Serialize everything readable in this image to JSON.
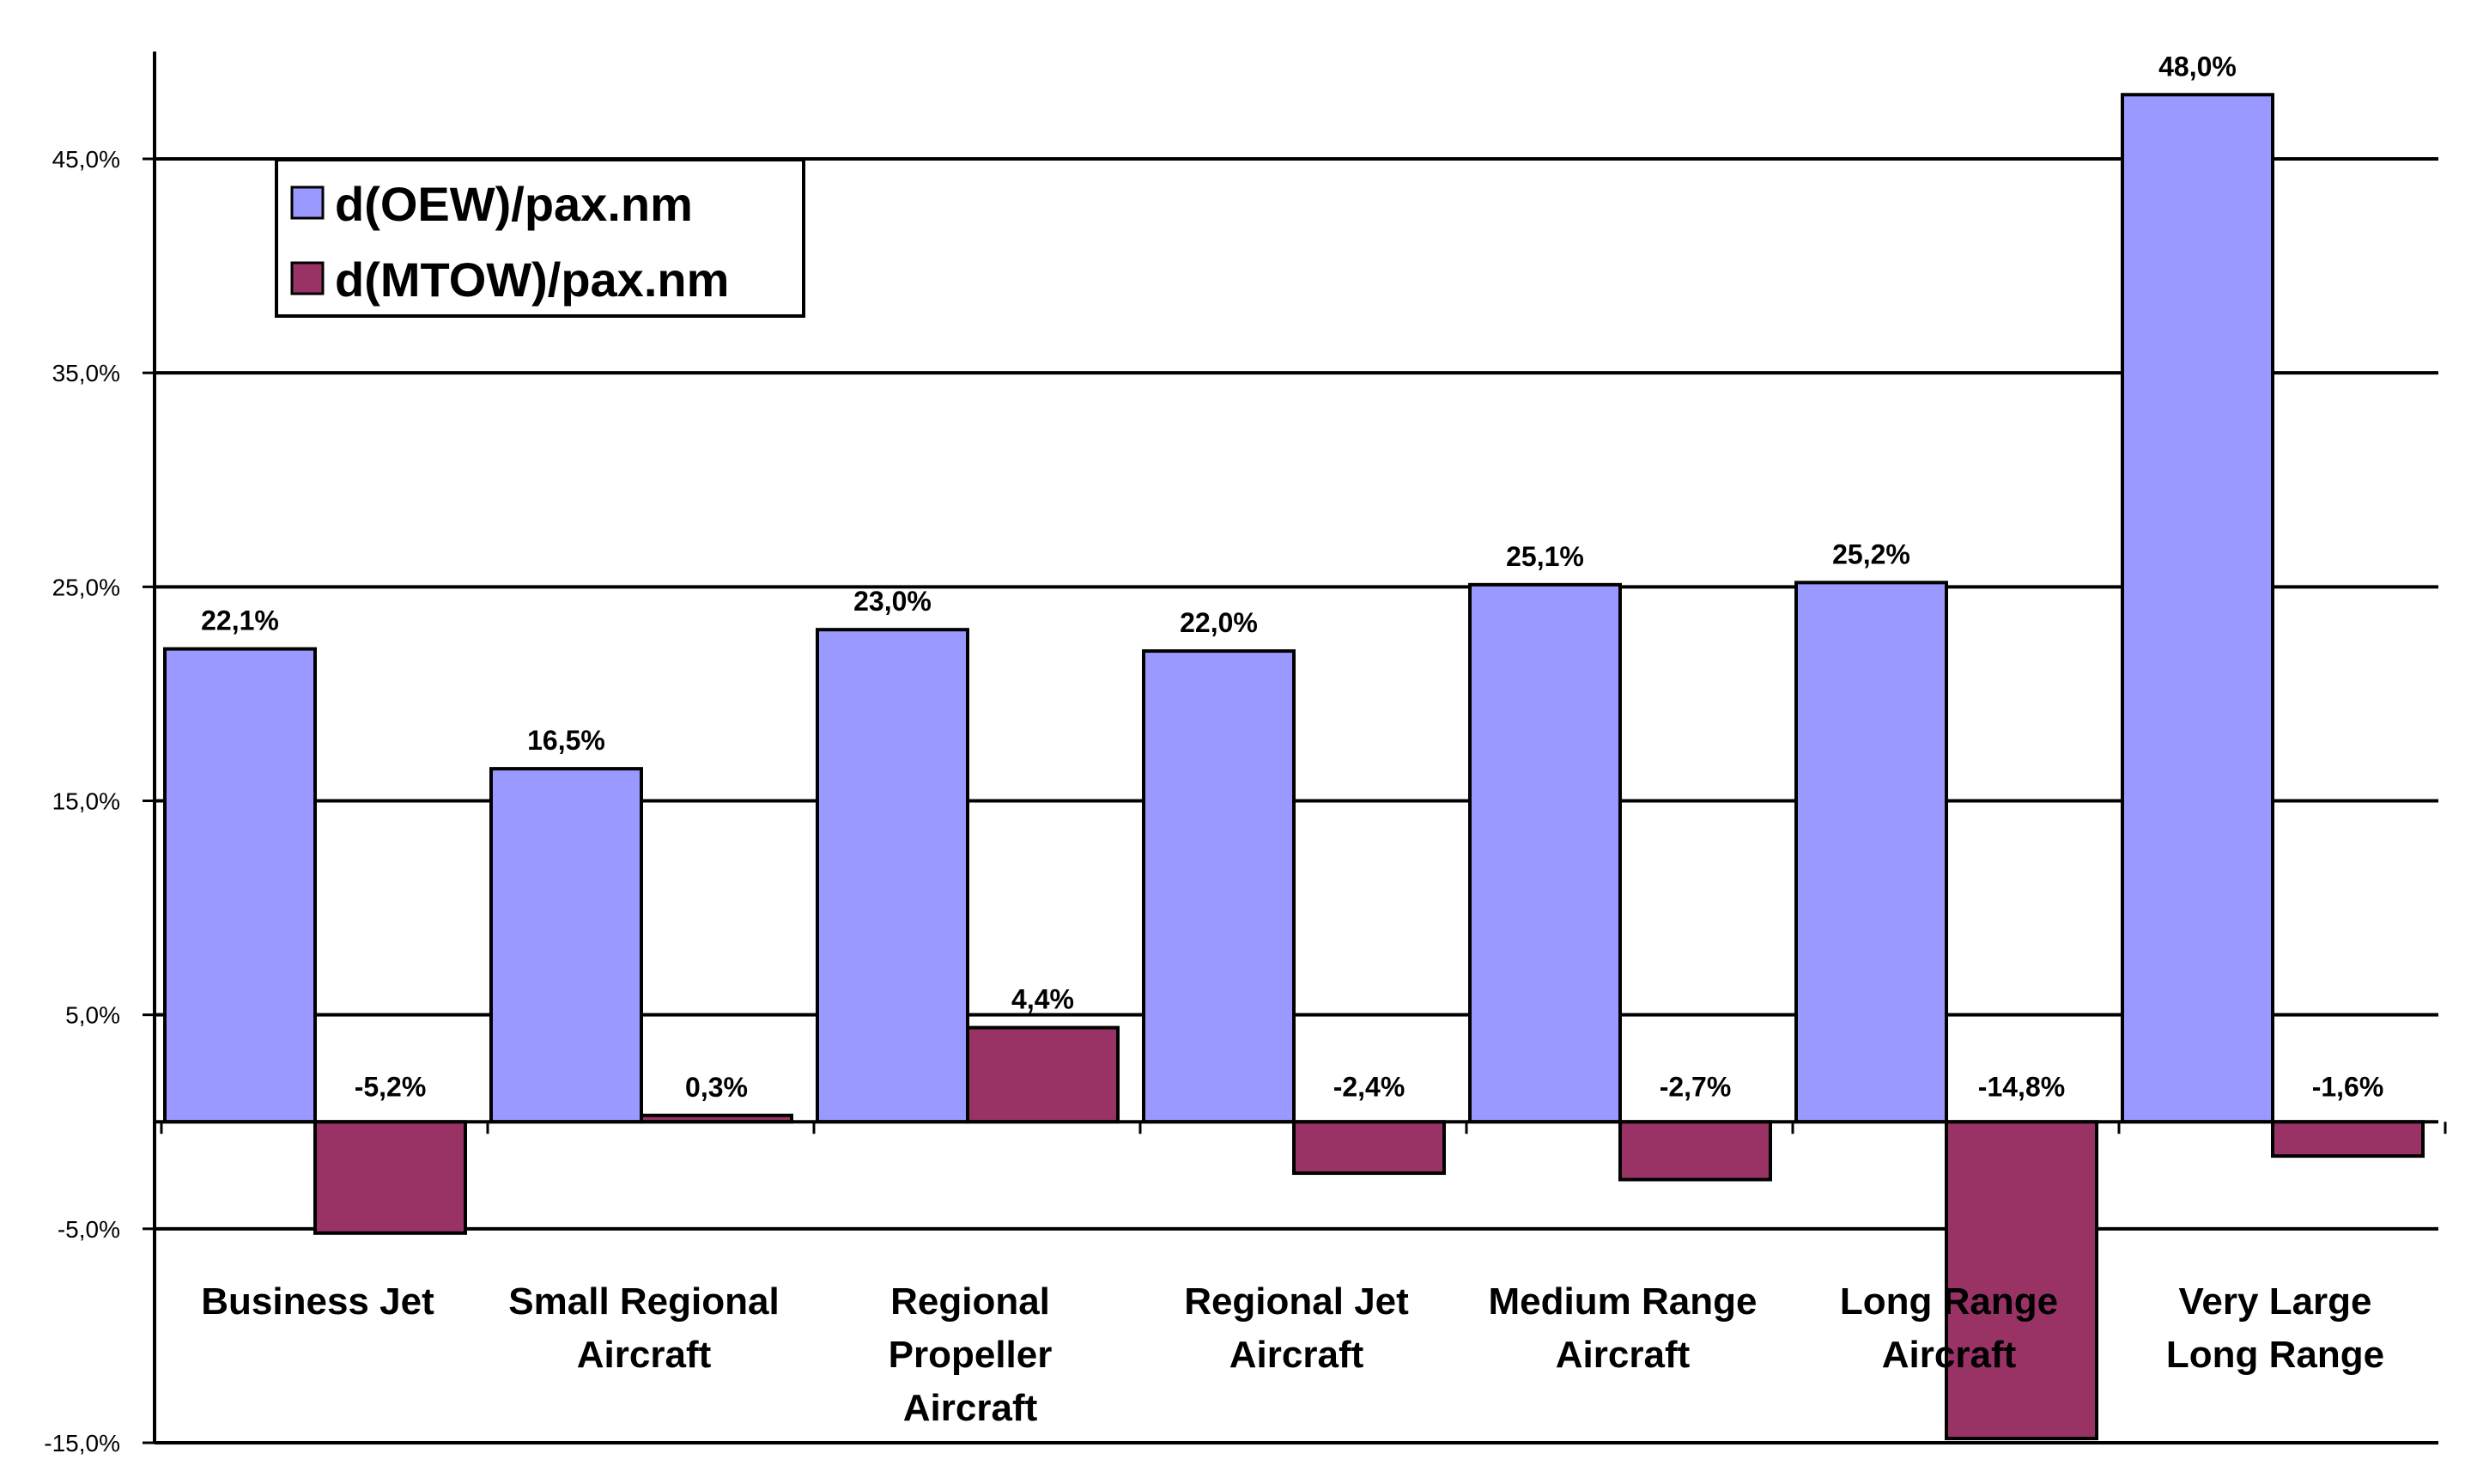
{
  "chart_data": {
    "type": "bar",
    "title": "",
    "xlabel": "",
    "ylabel": "",
    "ylim": [
      -15,
      50
    ],
    "yticks": [
      45,
      35,
      25,
      15,
      5,
      -5,
      -15
    ],
    "ytick_labels": [
      "45,0%",
      "35,0%",
      "25,0%",
      "15,0%",
      "5,0%",
      "-5,0%",
      "-15,0%"
    ],
    "grid": true,
    "legend_position": "top-left",
    "categories": [
      [
        "Business Jet"
      ],
      [
        "Small Regional",
        "Aircraft"
      ],
      [
        "Regional",
        "Propeller",
        "Aircraft"
      ],
      [
        "Regional Jet",
        "Aircraft"
      ],
      [
        "Medium Range",
        "Aircraft"
      ],
      [
        "Long Range",
        "Aircraft"
      ],
      [
        "Very Large",
        "Long Range"
      ]
    ],
    "series": [
      {
        "name": "d(OEW)/pax.nm",
        "color": "#9999ff",
        "values": [
          22.1,
          16.5,
          23.0,
          22.0,
          25.1,
          25.2,
          48.0
        ],
        "labels": [
          "22,1%",
          "16,5%",
          "23,0%",
          "22,0%",
          "25,1%",
          "25,2%",
          "48,0%"
        ]
      },
      {
        "name": "d(MTOW)/pax.nm",
        "color": "#993366",
        "values": [
          -5.2,
          0.3,
          4.4,
          -2.4,
          -2.7,
          -14.8,
          -1.6
        ],
        "labels": [
          "-5,2%",
          "0,3%",
          "4,4%",
          "-2,4%",
          "-2,7%",
          "-14,8%",
          "-1,6%"
        ]
      }
    ]
  }
}
